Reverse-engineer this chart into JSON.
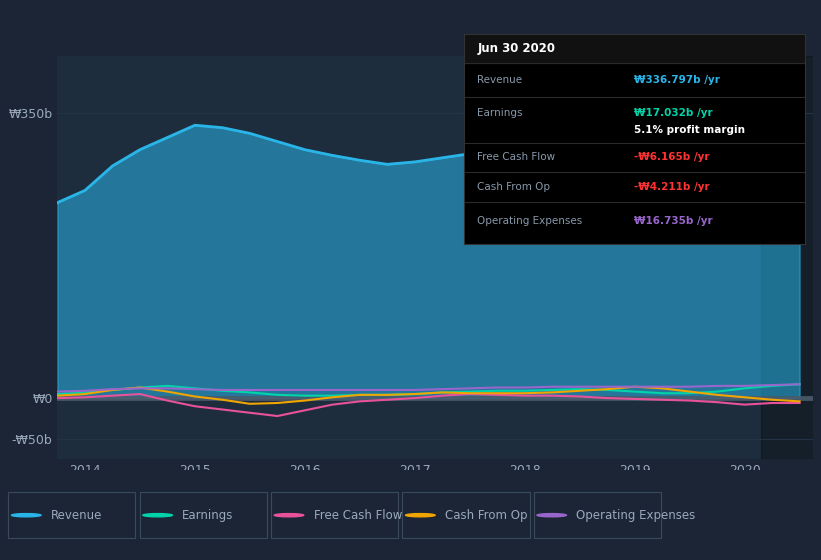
{
  "bg_color": "#1b2535",
  "plot_bg_color": "#1e2d3d",
  "legend_bg_color": "#1b2535",
  "text_color": "#9aaabb",
  "grid_color": "#263547",
  "ylim": [
    -75,
    420
  ],
  "yticks": [
    -50,
    0,
    350
  ],
  "ytick_labels": [
    "-₩50b",
    "₩0",
    "₩350b"
  ],
  "xtick_labels": [
    "2014",
    "2015",
    "2016",
    "2017",
    "2018",
    "2019",
    "2020"
  ],
  "xtick_positions": [
    2014,
    2015,
    2016,
    2017,
    2018,
    2019,
    2020
  ],
  "legend_items": [
    {
      "label": "Revenue",
      "color": "#29b5e8"
    },
    {
      "label": "Earnings",
      "color": "#00d4aa"
    },
    {
      "label": "Free Cash Flow",
      "color": "#e8529a"
    },
    {
      "label": "Cash From Op",
      "color": "#f0a500"
    },
    {
      "label": "Operating Expenses",
      "color": "#9966cc"
    }
  ],
  "tooltip": {
    "date": "Jun 30 2020",
    "rows": [
      {
        "label": "Revenue",
        "value": "₩336.797b /yr",
        "color": "#29b5e8"
      },
      {
        "label": "Earnings",
        "value": "₩17.032b /yr",
        "color": "#00d4aa"
      },
      {
        "label": "",
        "value": "5.1% profit margin",
        "color": "#ffffff"
      },
      {
        "label": "Free Cash Flow",
        "value": "-₩6.165b /yr",
        "color": "#ff3333"
      },
      {
        "label": "Cash From Op",
        "value": "-₩4.211b /yr",
        "color": "#ff3333"
      },
      {
        "label": "Operating Expenses",
        "value": "₩16.735b /yr",
        "color": "#9966cc"
      }
    ]
  },
  "x": [
    2013.75,
    2014.0,
    2014.25,
    2014.5,
    2014.75,
    2015.0,
    2015.25,
    2015.5,
    2015.75,
    2016.0,
    2016.25,
    2016.5,
    2016.75,
    2017.0,
    2017.25,
    2017.5,
    2017.75,
    2018.0,
    2018.25,
    2018.5,
    2018.75,
    2019.0,
    2019.25,
    2019.5,
    2019.75,
    2020.0,
    2020.25,
    2020.5
  ],
  "revenue": [
    240,
    255,
    285,
    305,
    320,
    335,
    332,
    325,
    315,
    305,
    298,
    292,
    287,
    290,
    295,
    300,
    305,
    315,
    325,
    332,
    328,
    295,
    255,
    218,
    195,
    238,
    300,
    337
  ],
  "earnings": [
    5,
    7,
    10,
    13,
    15,
    12,
    9,
    7,
    4,
    3,
    3,
    4,
    4,
    5,
    7,
    8,
    9,
    9,
    10,
    11,
    10,
    8,
    6,
    6,
    8,
    12,
    15,
    17
  ],
  "fcf": [
    0,
    1,
    3,
    5,
    -3,
    -10,
    -14,
    -18,
    -22,
    -15,
    -8,
    -4,
    -2,
    0,
    3,
    5,
    4,
    3,
    3,
    2,
    0,
    -1,
    -2,
    -3,
    -5,
    -8,
    -6,
    -6
  ],
  "cashop": [
    3,
    5,
    10,
    13,
    8,
    2,
    -2,
    -7,
    -6,
    -3,
    1,
    4,
    4,
    5,
    7,
    6,
    6,
    6,
    7,
    9,
    11,
    14,
    12,
    8,
    4,
    1,
    -2,
    -4
  ],
  "opex": [
    8,
    9,
    11,
    12,
    12,
    11,
    10,
    10,
    10,
    10,
    10,
    10,
    10,
    10,
    11,
    12,
    13,
    13,
    14,
    14,
    14,
    14,
    14,
    14,
    15,
    15,
    16,
    17
  ],
  "highlight_start": 2020.15,
  "xlim": [
    2013.75,
    2020.62
  ]
}
